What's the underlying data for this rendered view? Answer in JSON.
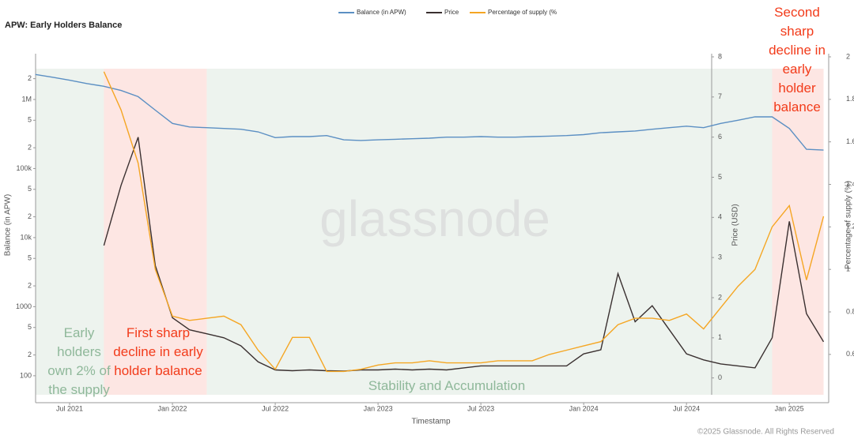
{
  "chart_data": {
    "type": "line",
    "title": "APW: Early Holders Balance",
    "xlabel": "Timestamp",
    "ylabel": "Balance (in APW)",
    "y2label": "Price (USD)",
    "y3label": "Percentage of supply (%)",
    "watermark": "glassnode",
    "footer": "©2025 Glassnode. All Rights Reserved",
    "y_log_scale": true,
    "legend": "top",
    "x": [
      "2021-05",
      "2021-06",
      "2021-07",
      "2021-08",
      "2021-09",
      "2021-10",
      "2021-11",
      "2021-12",
      "2022-01",
      "2022-02",
      "2022-03",
      "2022-04",
      "2022-05",
      "2022-06",
      "2022-07",
      "2022-08",
      "2022-09",
      "2022-10",
      "2022-11",
      "2022-12",
      "2023-01",
      "2023-02",
      "2023-03",
      "2023-04",
      "2023-05",
      "2023-06",
      "2023-07",
      "2023-08",
      "2023-09",
      "2023-10",
      "2023-11",
      "2023-12",
      "2024-01",
      "2024-02",
      "2024-03",
      "2024-04",
      "2024-05",
      "2024-06",
      "2024-07",
      "2024-08",
      "2024-09",
      "2024-10",
      "2024-11",
      "2024-12",
      "2025-01",
      "2025-02",
      "2025-03"
    ],
    "series": [
      {
        "name": "Balance (in APW)",
        "color": "#5b8fc3",
        "axis": "y",
        "values": [
          2300000,
          2100000,
          1900000,
          1700000,
          1550000,
          1350000,
          1100000,
          700000,
          450000,
          400000,
          390000,
          380000,
          370000,
          340000,
          280000,
          290000,
          290000,
          300000,
          260000,
          255000,
          260000,
          265000,
          270000,
          275000,
          285000,
          285000,
          290000,
          285000,
          285000,
          290000,
          295000,
          300000,
          310000,
          330000,
          340000,
          350000,
          370000,
          390000,
          410000,
          390000,
          450000,
          500000,
          560000,
          560000,
          380000,
          190000,
          185000
        ]
      },
      {
        "name": "Price",
        "color": "#3a3030",
        "axis": "y2",
        "values": [
          null,
          null,
          null,
          null,
          3.3,
          4.8,
          6.0,
          2.8,
          1.5,
          1.2,
          1.1,
          1.0,
          0.8,
          0.4,
          0.2,
          0.18,
          0.2,
          0.18,
          0.17,
          0.2,
          0.2,
          0.22,
          0.2,
          0.22,
          0.2,
          0.25,
          0.3,
          0.3,
          0.3,
          0.3,
          0.3,
          0.3,
          0.6,
          0.7,
          2.6,
          1.4,
          1.8,
          1.2,
          0.6,
          0.45,
          0.35,
          0.3,
          0.25,
          1.0,
          3.9,
          1.6,
          0.9
        ]
      },
      {
        "name": "Percentage of supply (%",
        "color": "#f5a623",
        "axis": "y3",
        "values": [
          null,
          null,
          null,
          null,
          1.93,
          1.75,
          1.5,
          1.0,
          0.78,
          0.76,
          0.77,
          0.78,
          0.74,
          0.62,
          0.53,
          0.68,
          0.68,
          0.52,
          0.52,
          0.53,
          0.55,
          0.56,
          0.56,
          0.57,
          0.56,
          0.56,
          0.56,
          0.57,
          0.57,
          0.57,
          0.6,
          0.62,
          0.64,
          0.66,
          0.74,
          0.77,
          0.77,
          0.76,
          0.79,
          0.72,
          0.82,
          0.92,
          1.0,
          1.2,
          1.3,
          0.95,
          1.25
        ]
      }
    ],
    "ylim": [
      53,
      4140000
    ],
    "yticks": [
      100,
      {
        "value": 200,
        "label": "2"
      },
      {
        "value": 500,
        "label": "5"
      },
      1000,
      {
        "value": 2000,
        "label": "2"
      },
      {
        "value": 5000,
        "label": "5"
      },
      {
        "value": 10000,
        "label": "10k"
      },
      {
        "value": 20000,
        "label": "2"
      },
      {
        "value": 50000,
        "label": "5"
      },
      {
        "value": 100000,
        "label": "100k"
      },
      {
        "value": 200000,
        "label": "2"
      },
      {
        "value": 500000,
        "label": "5"
      },
      {
        "value": 1000000,
        "label": "1M"
      },
      {
        "value": 2000000,
        "label": "2"
      }
    ],
    "y2lim": [
      -0.42,
      8
    ],
    "y2ticks": [
      0,
      1,
      2,
      3,
      4,
      5,
      6,
      7,
      8
    ],
    "y3lim": [
      0.41,
      2
    ],
    "y3ticks": [
      0.6,
      0.8,
      1,
      1.2,
      1.4,
      1.6,
      1.8,
      2
    ],
    "xticks": [
      {
        "value": "2021-07",
        "label": "Jul 2021"
      },
      {
        "value": "2022-01",
        "label": "Jan 2022"
      },
      {
        "value": "2022-07",
        "label": "Jul 2022"
      },
      {
        "value": "2023-01",
        "label": "Jan 2023"
      },
      {
        "value": "2023-07",
        "label": "Jul 2023"
      },
      {
        "value": "2024-01",
        "label": "Jan 2024"
      },
      {
        "value": "2024-07",
        "label": "Jul 2024"
      },
      {
        "value": "2025-01",
        "label": "Jan 2025"
      }
    ],
    "regions": [
      {
        "start": "2021-05",
        "end": "2025-03",
        "color": "#edf3ee"
      },
      {
        "start": "2021-09",
        "end": "2022-03",
        "color": "#fde6e3"
      },
      {
        "start": "2024-12",
        "end": "2025-03",
        "color": "#fde6e3"
      }
    ],
    "annotations": [
      {
        "text": "Early holders own 2% of the supply",
        "color": "#8fb89a"
      },
      {
        "text": "First sharp decline in early holder balance",
        "color": "#f23b1a"
      },
      {
        "text": "Stability and Accumulation",
        "color": "#8fb89a"
      },
      {
        "text": "Second sharp decline in early holder balance",
        "color": "#f23b1a"
      }
    ]
  }
}
